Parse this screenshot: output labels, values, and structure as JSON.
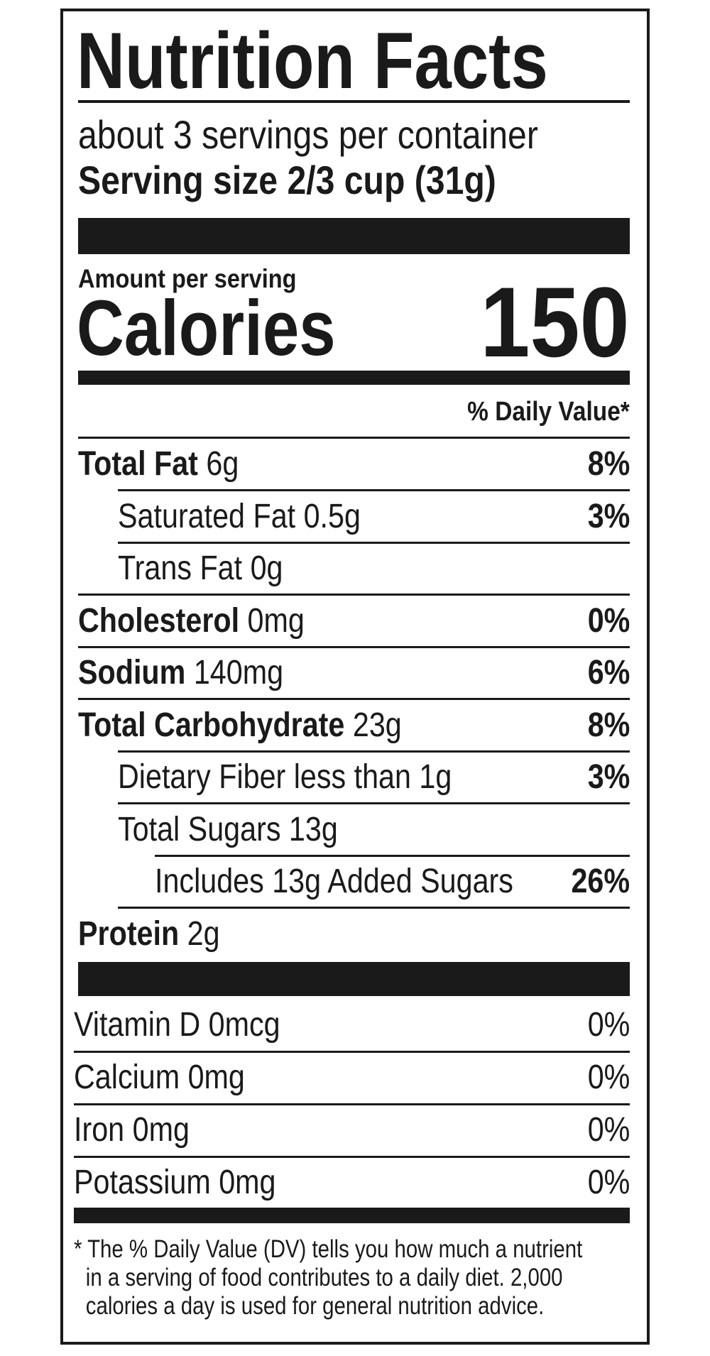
{
  "label": {
    "title": "Nutrition Facts",
    "servings_per_container": "about 3 servings per container",
    "serving_size_label": "Serving size",
    "serving_size_value": "2/3 cup (31g)",
    "amount_per_serving": "Amount per serving",
    "calories_label": "Calories",
    "calories_value": "150",
    "daily_value_header": "% Daily Value*"
  },
  "nutrients": [
    {
      "name": "Total Fat",
      "amount": "6g",
      "dv": "8%",
      "bold": true,
      "indent": 0
    },
    {
      "name": "Saturated Fat",
      "amount": "0.5g",
      "dv": "3%",
      "bold": false,
      "indent": 1
    },
    {
      "name": "Trans Fat",
      "amount": "0g",
      "dv": "",
      "bold": false,
      "indent": 1
    },
    {
      "name": "Cholesterol",
      "amount": "0mg",
      "dv": "0%",
      "bold": true,
      "indent": 0
    },
    {
      "name": "Sodium",
      "amount": "140mg",
      "dv": "6%",
      "bold": true,
      "indent": 0
    },
    {
      "name": "Total Carbohydrate",
      "amount": "23g",
      "dv": "8%",
      "bold": true,
      "indent": 0
    },
    {
      "name": "Dietary Fiber",
      "amount": "less than 1g",
      "dv": "3%",
      "bold": false,
      "indent": 1
    },
    {
      "name": "Total Sugars",
      "amount": "13g",
      "dv": "",
      "bold": false,
      "indent": 1
    },
    {
      "name": "Includes 13g Added Sugars",
      "amount": "",
      "dv": "26%",
      "bold": false,
      "indent": 2
    },
    {
      "name": "Protein",
      "amount": "2g",
      "dv": "",
      "bold": true,
      "indent": 0
    }
  ],
  "vitamins": [
    {
      "name": "Vitamin D",
      "amount": "0mcg",
      "dv": "0%"
    },
    {
      "name": "Calcium",
      "amount": "0mg",
      "dv": "0%"
    },
    {
      "name": "Iron",
      "amount": "0mg",
      "dv": "0%"
    },
    {
      "name": "Potassium",
      "amount": "0mg",
      "dv": "0%"
    }
  ],
  "footnote": {
    "lines": [
      "* The % Daily Value (DV) tells you how much a nutrient",
      "in a serving of food contributes to a daily diet. 2,000",
      "calories a day is used for general nutrition advice."
    ]
  }
}
